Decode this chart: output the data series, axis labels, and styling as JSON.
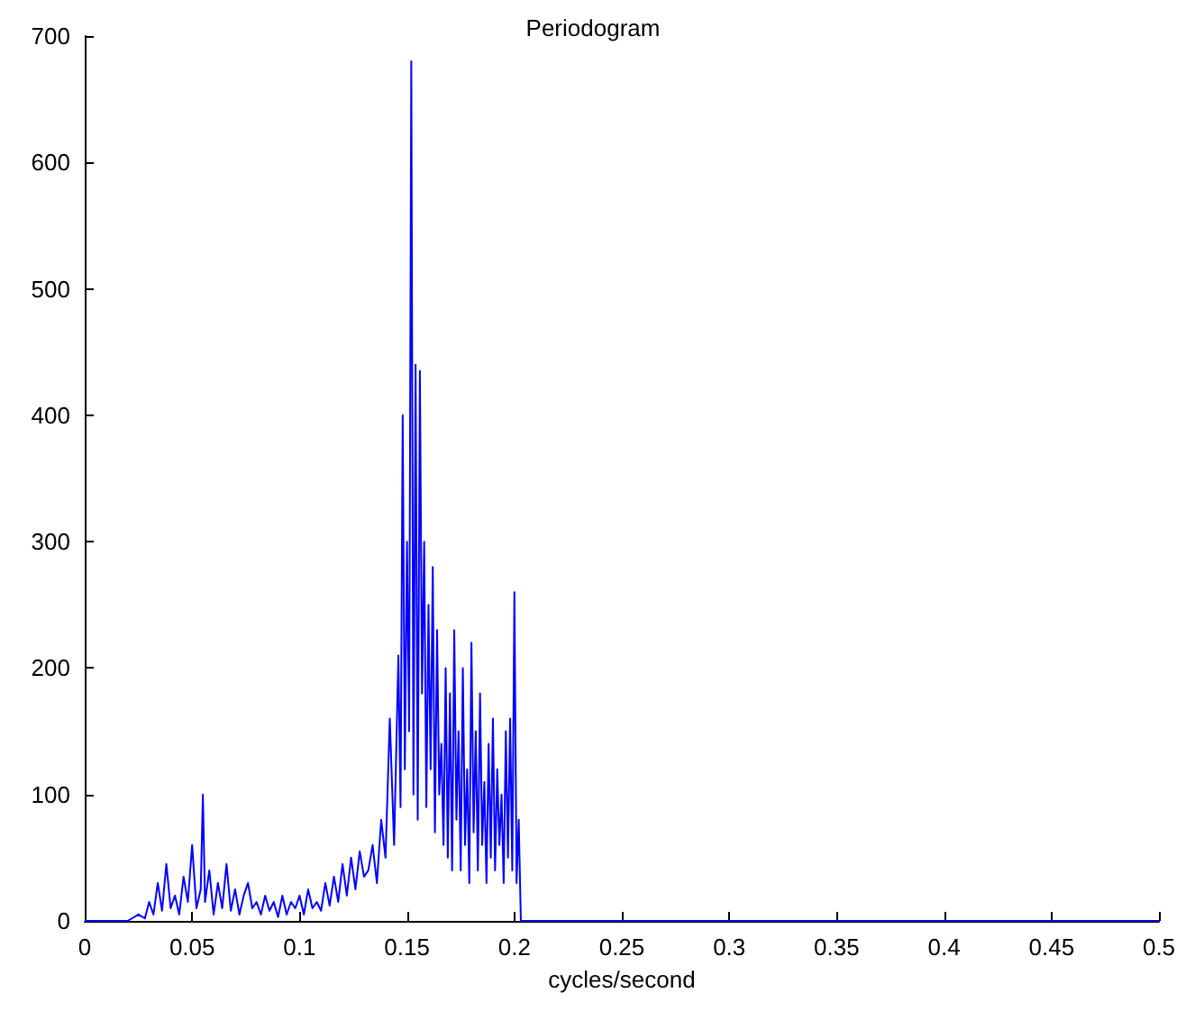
{
  "chart_data": {
    "type": "line",
    "title": "Periodogram",
    "xlabel": "cycles/second",
    "x": [
      0,
      0.02,
      0.025,
      0.028,
      0.03,
      0.032,
      0.034,
      0.036,
      0.038,
      0.04,
      0.042,
      0.044,
      0.046,
      0.048,
      0.05,
      0.052,
      0.054,
      0.055,
      0.056,
      0.058,
      0.06,
      0.062,
      0.064,
      0.066,
      0.068,
      0.07,
      0.072,
      0.074,
      0.076,
      0.078,
      0.08,
      0.082,
      0.084,
      0.086,
      0.088,
      0.09,
      0.092,
      0.094,
      0.096,
      0.098,
      0.1,
      0.102,
      0.104,
      0.106,
      0.108,
      0.11,
      0.112,
      0.114,
      0.116,
      0.118,
      0.12,
      0.122,
      0.124,
      0.126,
      0.128,
      0.13,
      0.132,
      0.134,
      0.136,
      0.138,
      0.14,
      0.142,
      0.144,
      0.146,
      0.147,
      0.148,
      0.149,
      0.15,
      0.151,
      0.152,
      0.153,
      0.154,
      0.155,
      0.156,
      0.157,
      0.158,
      0.159,
      0.16,
      0.161,
      0.162,
      0.163,
      0.164,
      0.165,
      0.166,
      0.167,
      0.168,
      0.169,
      0.17,
      0.171,
      0.172,
      0.173,
      0.174,
      0.175,
      0.176,
      0.177,
      0.178,
      0.179,
      0.18,
      0.181,
      0.182,
      0.183,
      0.184,
      0.185,
      0.186,
      0.187,
      0.188,
      0.189,
      0.19,
      0.191,
      0.192,
      0.193,
      0.194,
      0.195,
      0.196,
      0.197,
      0.198,
      0.199,
      0.2,
      0.201,
      0.202,
      0.203,
      0.25,
      0.3,
      0.35,
      0.4,
      0.45,
      0.5
    ],
    "values": [
      0,
      0,
      5,
      2,
      15,
      5,
      30,
      8,
      45,
      10,
      20,
      5,
      35,
      15,
      60,
      10,
      25,
      100,
      15,
      40,
      5,
      30,
      10,
      45,
      8,
      25,
      5,
      20,
      30,
      10,
      15,
      5,
      20,
      8,
      15,
      3,
      20,
      5,
      15,
      10,
      20,
      5,
      25,
      10,
      15,
      8,
      30,
      12,
      35,
      15,
      45,
      20,
      50,
      25,
      55,
      35,
      40,
      60,
      30,
      80,
      50,
      160,
      60,
      210,
      90,
      400,
      120,
      300,
      150,
      680,
      100,
      440,
      80,
      435,
      180,
      300,
      90,
      250,
      120,
      280,
      70,
      230,
      100,
      140,
      60,
      200,
      50,
      180,
      40,
      230,
      80,
      150,
      40,
      200,
      60,
      120,
      30,
      220,
      70,
      150,
      40,
      180,
      60,
      110,
      30,
      140,
      50,
      160,
      40,
      120,
      60,
      100,
      30,
      150,
      50,
      160,
      40,
      260,
      30,
      80,
      0,
      0,
      0,
      0,
      0,
      0,
      0
    ],
    "color": "#0000ff",
    "xlim": [
      0,
      0.5
    ],
    "ylim": [
      0,
      700
    ],
    "xticks": [
      0,
      0.05,
      0.1,
      0.15,
      0.2,
      0.25,
      0.3,
      0.35,
      0.4,
      0.45,
      0.5
    ],
    "yticks": [
      0,
      100,
      200,
      300,
      400,
      500,
      600,
      700
    ],
    "grid": false,
    "marker": "none",
    "line_style": "solid"
  }
}
